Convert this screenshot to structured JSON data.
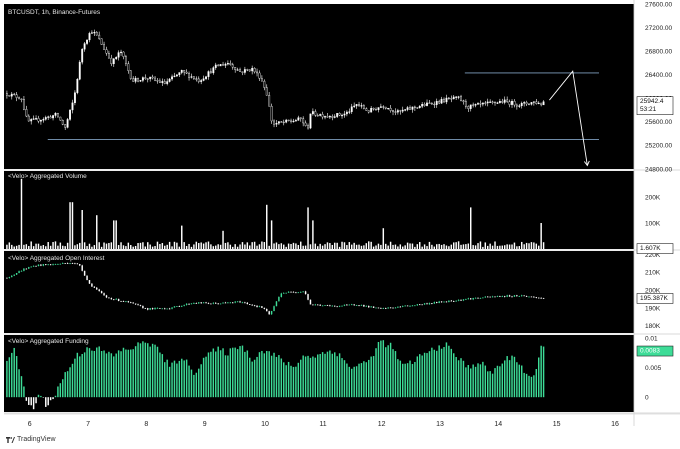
{
  "colors": {
    "background": "#000000",
    "up": "#ffffff",
    "down": "#000000",
    "volume": "#ffffff",
    "oi_up": "#3ddc97",
    "oi_down": "#ffffff",
    "funding_pos": "#3ddc97",
    "funding_neg": "#ffffff",
    "level_line": "#7f9fbf",
    "badge_bg": "#ffffff",
    "badge_green": "#3ddc97"
  },
  "panes": {
    "price": {
      "label": "BTCUSDT, 1h, Binance-Futures"
    },
    "volume": {
      "label": "<Velo> Aggregated Volume"
    },
    "oi": {
      "label": "<Velo> Aggregated Open Interest"
    },
    "funding": {
      "label": "<Velo> Aggregated Funding"
    }
  },
  "footer": {
    "brand": "TradingView"
  },
  "chart_data": [
    {
      "type": "candlestick",
      "title": "BTCUSDT, 1h, Binance-Futures",
      "ylim": [
        24800,
        27600
      ],
      "y_ticks": [
        "27600.00",
        "27200.00",
        "26800.00",
        "26400.00",
        "26000.00",
        "25600.00",
        "25200.00",
        "24800.00"
      ],
      "last_price": "25942.4",
      "countdown": "53:21",
      "levels": [
        26430,
        25300
      ],
      "projection": {
        "points": [
          [
            14.9,
            25970
          ],
          [
            15.3,
            26460
          ],
          [
            15.55,
            24860
          ]
        ]
      },
      "x_ticks": [
        "6",
        "7",
        "8",
        "9",
        "10",
        "11",
        "12",
        "13",
        "14",
        "15",
        "16"
      ],
      "xlim": [
        5.55,
        16.35
      ],
      "anchors": [
        [
          5.6,
          26080
        ],
        [
          5.85,
          26000
        ],
        [
          5.95,
          25600
        ],
        [
          6.2,
          25650
        ],
        [
          6.45,
          25720
        ],
        [
          6.6,
          25500
        ],
        [
          6.75,
          26000
        ],
        [
          6.9,
          26900
        ],
        [
          7.05,
          27150
        ],
        [
          7.15,
          27050
        ],
        [
          7.4,
          26600
        ],
        [
          7.55,
          26800
        ],
        [
          7.75,
          26300
        ],
        [
          8.0,
          26350
        ],
        [
          8.3,
          26250
        ],
        [
          8.6,
          26450
        ],
        [
          8.9,
          26300
        ],
        [
          9.2,
          26550
        ],
        [
          9.4,
          26600
        ],
        [
          9.6,
          26450
        ],
        [
          9.8,
          26500
        ],
        [
          9.95,
          26350
        ],
        [
          10.05,
          26100
        ],
        [
          10.15,
          25560
        ],
        [
          10.4,
          25600
        ],
        [
          10.65,
          25650
        ],
        [
          10.75,
          25450
        ],
        [
          10.8,
          25750
        ],
        [
          11.1,
          25700
        ],
        [
          11.4,
          25730
        ],
        [
          11.6,
          25900
        ],
        [
          11.8,
          25780
        ],
        [
          12.05,
          25880
        ],
        [
          12.3,
          25760
        ],
        [
          12.6,
          25850
        ],
        [
          12.9,
          25920
        ],
        [
          13.15,
          25980
        ],
        [
          13.35,
          26000
        ],
        [
          13.5,
          25850
        ],
        [
          13.8,
          25900
        ],
        [
          14.1,
          25950
        ],
        [
          14.4,
          25890
        ],
        [
          14.65,
          25940
        ],
        [
          14.75,
          25900
        ],
        [
          14.8,
          25942
        ]
      ]
    },
    {
      "type": "bar",
      "title": "<Velo> Aggregated Volume",
      "ylim": [
        0,
        300000
      ],
      "y_ticks": [
        "200K",
        "100K"
      ],
      "last_value": "1.607K",
      "spikes": [
        [
          5.85,
          270000
        ],
        [
          6.7,
          180000
        ],
        [
          6.9,
          150000
        ],
        [
          7.15,
          130000
        ],
        [
          7.45,
          110000
        ],
        [
          8.6,
          90000
        ],
        [
          9.3,
          70000
        ],
        [
          10.05,
          170000
        ],
        [
          10.15,
          110000
        ],
        [
          10.75,
          160000
        ],
        [
          10.85,
          110000
        ],
        [
          12.05,
          80000
        ],
        [
          13.55,
          160000
        ],
        [
          14.75,
          100000
        ]
      ]
    },
    {
      "type": "bar",
      "title": "<Velo> Aggregated Open Interest",
      "ylim": [
        176000,
        222000
      ],
      "y_ticks": [
        "220K",
        "210K",
        "200K",
        "190K",
        "180K"
      ],
      "last_value": "195.387K",
      "anchors": [
        [
          5.6,
          207000
        ],
        [
          5.9,
          212000
        ],
        [
          6.1,
          214000
        ],
        [
          6.4,
          214500
        ],
        [
          6.7,
          215500
        ],
        [
          6.85,
          214000
        ],
        [
          7.0,
          204000
        ],
        [
          7.3,
          196000
        ],
        [
          7.7,
          193000
        ],
        [
          8.0,
          189500
        ],
        [
          8.4,
          190000
        ],
        [
          8.8,
          193000
        ],
        [
          9.2,
          192500
        ],
        [
          9.6,
          193500
        ],
        [
          10.0,
          190000
        ],
        [
          10.1,
          186000
        ],
        [
          10.3,
          198500
        ],
        [
          10.7,
          199500
        ],
        [
          10.8,
          192000
        ],
        [
          11.2,
          191000
        ],
        [
          11.6,
          192000
        ],
        [
          12.0,
          189500
        ],
        [
          12.4,
          191000
        ],
        [
          12.8,
          192500
        ],
        [
          13.2,
          194000
        ],
        [
          13.6,
          195500
        ],
        [
          14.0,
          196500
        ],
        [
          14.4,
          197000
        ],
        [
          14.8,
          195400
        ]
      ]
    },
    {
      "type": "bar",
      "title": "<Velo> Aggregated Funding",
      "ylim": [
        -0.0025,
        0.0105
      ],
      "y_ticks": [
        "0.01",
        "0.005",
        "0"
      ],
      "last_value": "0.0083",
      "anchors": [
        [
          5.6,
          0.0065
        ],
        [
          5.75,
          0.008
        ],
        [
          5.85,
          0.003
        ],
        [
          5.95,
          -0.001
        ],
        [
          6.05,
          -0.002
        ],
        [
          6.15,
          0.0005
        ],
        [
          6.3,
          -0.0015
        ],
        [
          6.45,
          0.001
        ],
        [
          6.6,
          0.004
        ],
        [
          6.8,
          0.007
        ],
        [
          7.0,
          0.0085
        ],
        [
          7.2,
          0.008
        ],
        [
          7.4,
          0.007
        ],
        [
          7.6,
          0.008
        ],
        [
          7.8,
          0.0085
        ],
        [
          8.0,
          0.0095
        ],
        [
          8.2,
          0.008
        ],
        [
          8.4,
          0.005
        ],
        [
          8.6,
          0.007
        ],
        [
          8.8,
          0.004
        ],
        [
          9.0,
          0.007
        ],
        [
          9.2,
          0.008
        ],
        [
          9.4,
          0.0075
        ],
        [
          9.6,
          0.009
        ],
        [
          9.8,
          0.0065
        ],
        [
          10.0,
          0.008
        ],
        [
          10.2,
          0.007
        ],
        [
          10.5,
          0.005
        ],
        [
          10.7,
          0.007
        ],
        [
          10.9,
          0.007
        ],
        [
          11.2,
          0.008
        ],
        [
          11.5,
          0.005
        ],
        [
          11.8,
          0.006
        ],
        [
          12.0,
          0.0095
        ],
        [
          12.2,
          0.0085
        ],
        [
          12.4,
          0.005
        ],
        [
          12.7,
          0.007
        ],
        [
          12.9,
          0.008
        ],
        [
          13.1,
          0.009
        ],
        [
          13.3,
          0.007
        ],
        [
          13.5,
          0.005
        ],
        [
          13.7,
          0.006
        ],
        [
          13.9,
          0.004
        ],
        [
          14.1,
          0.006
        ],
        [
          14.3,
          0.007
        ],
        [
          14.5,
          0.004
        ],
        [
          14.65,
          0.003
        ],
        [
          14.75,
          0.0083
        ]
      ]
    }
  ]
}
